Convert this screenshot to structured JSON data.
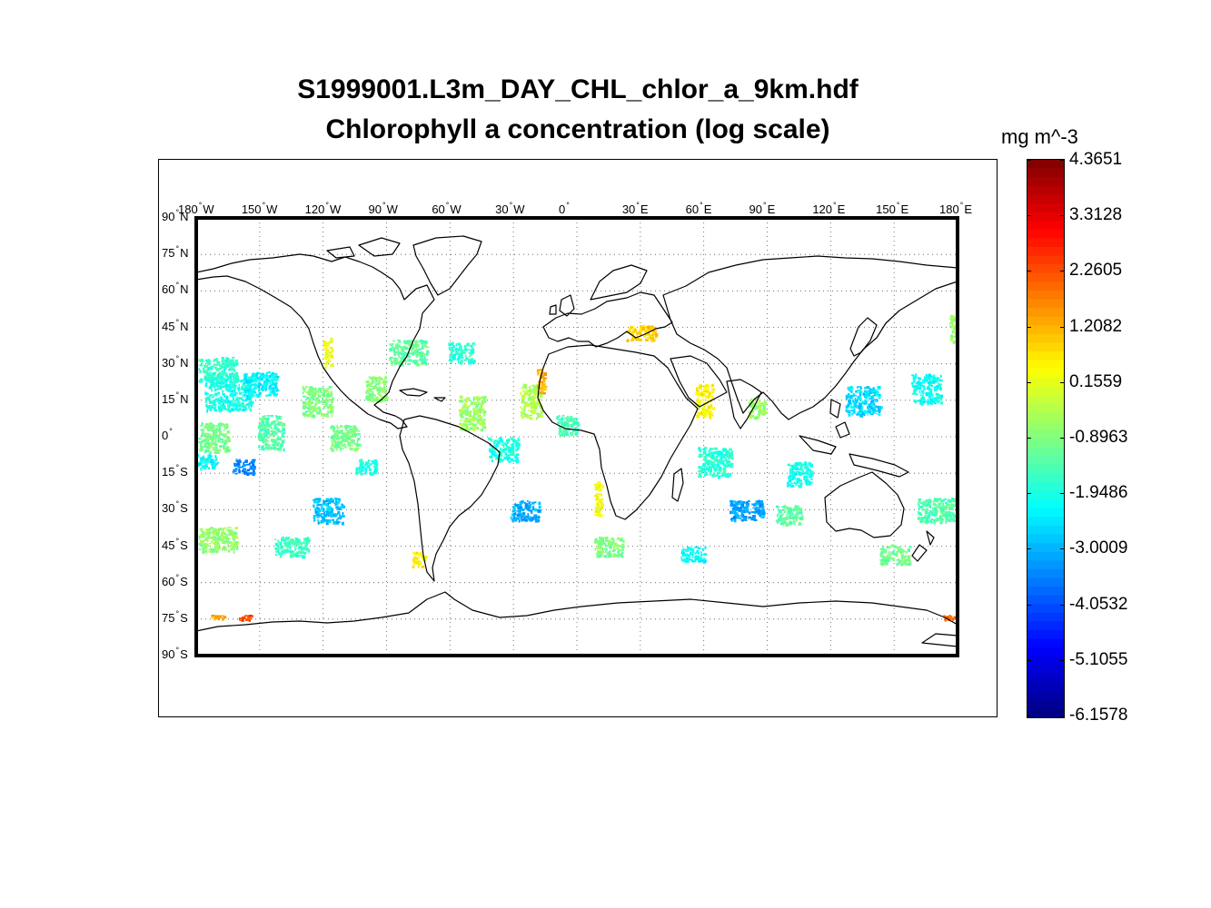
{
  "title": {
    "line1": "S1999001.L3m_DAY_CHL_chlor_a_9km.hdf",
    "line2": "Chlorophyll a concentration (log scale)"
  },
  "map": {
    "projection": "equirectangular",
    "lon_range": [
      -180,
      180
    ],
    "lat_range": [
      -90,
      90
    ],
    "grid": "dotted",
    "lon_ticks": [
      {
        "value": -180,
        "num": "180",
        "hem": "W"
      },
      {
        "value": -150,
        "num": "150",
        "hem": "W"
      },
      {
        "value": -120,
        "num": "120",
        "hem": "W"
      },
      {
        "value": -90,
        "num": "90",
        "hem": "W"
      },
      {
        "value": -60,
        "num": "60",
        "hem": "W"
      },
      {
        "value": -30,
        "num": "30",
        "hem": "W"
      },
      {
        "value": 0,
        "num": "0",
        "hem": ""
      },
      {
        "value": 30,
        "num": "30",
        "hem": "E"
      },
      {
        "value": 60,
        "num": "60",
        "hem": "E"
      },
      {
        "value": 90,
        "num": "90",
        "hem": "E"
      },
      {
        "value": 120,
        "num": "120",
        "hem": "E"
      },
      {
        "value": 150,
        "num": "150",
        "hem": "E"
      },
      {
        "value": 180,
        "num": "180",
        "hem": "E"
      }
    ],
    "lat_ticks": [
      {
        "value": 90,
        "num": "90",
        "hem": "N"
      },
      {
        "value": 75,
        "num": "75",
        "hem": "N"
      },
      {
        "value": 60,
        "num": "60",
        "hem": "N"
      },
      {
        "value": 45,
        "num": "45",
        "hem": "N"
      },
      {
        "value": 30,
        "num": "30",
        "hem": "N"
      },
      {
        "value": 15,
        "num": "15",
        "hem": "N"
      },
      {
        "value": 0,
        "num": "0",
        "hem": ""
      },
      {
        "value": -15,
        "num": "15",
        "hem": "S"
      },
      {
        "value": -30,
        "num": "30",
        "hem": "S"
      },
      {
        "value": -45,
        "num": "45",
        "hem": "S"
      },
      {
        "value": -60,
        "num": "60",
        "hem": "S"
      },
      {
        "value": -75,
        "num": "75",
        "hem": "S"
      },
      {
        "value": -90,
        "num": "90",
        "hem": "S"
      }
    ],
    "coast_color": "#000000",
    "data_patches": [
      {
        "lon": -170,
        "lat": 28,
        "w": 18,
        "h": 10,
        "v": -1.7
      },
      {
        "lon": -165,
        "lat": 18,
        "w": 22,
        "h": 14,
        "v": -2.0
      },
      {
        "lon": -150,
        "lat": 22,
        "w": 16,
        "h": 10,
        "v": -2.3
      },
      {
        "lon": -172,
        "lat": 0,
        "w": 14,
        "h": 12,
        "v": -1.0
      },
      {
        "lon": -175,
        "lat": -10,
        "w": 10,
        "h": 6,
        "v": -2.2
      },
      {
        "lon": -158,
        "lat": -12,
        "w": 10,
        "h": 6,
        "v": -3.4
      },
      {
        "lon": -145,
        "lat": 2,
        "w": 12,
        "h": 14,
        "v": -1.3
      },
      {
        "lon": -123,
        "lat": 15,
        "w": 14,
        "h": 12,
        "v": -0.9
      },
      {
        "lon": -118,
        "lat": 35,
        "w": 4,
        "h": 12,
        "v": 0.3
      },
      {
        "lon": -110,
        "lat": 0,
        "w": 14,
        "h": 10,
        "v": -1.0
      },
      {
        "lon": -100,
        "lat": -12,
        "w": 10,
        "h": 6,
        "v": -1.9
      },
      {
        "lon": -118,
        "lat": -30,
        "w": 14,
        "h": 10,
        "v": -2.9
      },
      {
        "lon": -135,
        "lat": -45,
        "w": 16,
        "h": 8,
        "v": -1.6
      },
      {
        "lon": -170,
        "lat": -42,
        "w": 18,
        "h": 10,
        "v": -0.7
      },
      {
        "lon": -95,
        "lat": 20,
        "w": 10,
        "h": 10,
        "v": -0.8
      },
      {
        "lon": -80,
        "lat": 35,
        "w": 18,
        "h": 10,
        "v": -1.2
      },
      {
        "lon": -55,
        "lat": 35,
        "w": 12,
        "h": 8,
        "v": -1.8
      },
      {
        "lon": -50,
        "lat": 10,
        "w": 12,
        "h": 14,
        "v": -0.6
      },
      {
        "lon": -35,
        "lat": -5,
        "w": 14,
        "h": 10,
        "v": -1.9
      },
      {
        "lon": -25,
        "lat": -30,
        "w": 14,
        "h": 8,
        "v": -3.0
      },
      {
        "lon": -22,
        "lat": 15,
        "w": 10,
        "h": 14,
        "v": -0.4
      },
      {
        "lon": -17,
        "lat": 23,
        "w": 4,
        "h": 10,
        "v": 1.2
      },
      {
        "lon": -5,
        "lat": 5,
        "w": 10,
        "h": 8,
        "v": -1.5
      },
      {
        "lon": 10,
        "lat": -25,
        "w": 4,
        "h": 14,
        "v": 0.4
      },
      {
        "lon": 15,
        "lat": -45,
        "w": 14,
        "h": 8,
        "v": -0.9
      },
      {
        "lon": 30,
        "lat": 43,
        "w": 14,
        "h": 6,
        "v": 0.9
      },
      {
        "lon": 60,
        "lat": 15,
        "w": 8,
        "h": 14,
        "v": 0.5
      },
      {
        "lon": 65,
        "lat": -10,
        "w": 16,
        "h": 12,
        "v": -1.8
      },
      {
        "lon": 80,
        "lat": -30,
        "w": 16,
        "h": 8,
        "v": -3.1
      },
      {
        "lon": 55,
        "lat": -48,
        "w": 12,
        "h": 6,
        "v": -2.2
      },
      {
        "lon": 85,
        "lat": 12,
        "w": 8,
        "h": 8,
        "v": -0.6
      },
      {
        "lon": 105,
        "lat": -15,
        "w": 12,
        "h": 10,
        "v": -2.0
      },
      {
        "lon": 100,
        "lat": -32,
        "w": 12,
        "h": 8,
        "v": -1.3
      },
      {
        "lon": 135,
        "lat": 15,
        "w": 16,
        "h": 12,
        "v": -2.6
      },
      {
        "lon": 165,
        "lat": 20,
        "w": 14,
        "h": 12,
        "v": -2.1
      },
      {
        "lon": 170,
        "lat": -30,
        "w": 18,
        "h": 10,
        "v": -1.4
      },
      {
        "lon": 150,
        "lat": -48,
        "w": 14,
        "h": 8,
        "v": -1.1
      },
      {
        "lon": 178,
        "lat": 45,
        "w": 4,
        "h": 12,
        "v": -0.6
      },
      {
        "lon": -170,
        "lat": -74,
        "w": 6,
        "h": 2,
        "v": 1.4
      },
      {
        "lon": -157,
        "lat": -74,
        "w": 6,
        "h": 2,
        "v": 2.3
      },
      {
        "lon": 176,
        "lat": -74,
        "w": 6,
        "h": 2,
        "v": 2.0
      },
      {
        "lon": -75,
        "lat": -50,
        "w": 6,
        "h": 6,
        "v": 0.6
      }
    ]
  },
  "colorbar": {
    "unit": "mg m^-3",
    "min": -6.1578,
    "max": 4.3651,
    "tick_labels": [
      "4.3651",
      "3.3128",
      "2.2605",
      "1.2082",
      "0.1559",
      "-0.8963",
      "-1.9486",
      "-3.0009",
      "-4.0532",
      "-5.1055",
      "-6.1578"
    ],
    "colormap": "jet"
  }
}
